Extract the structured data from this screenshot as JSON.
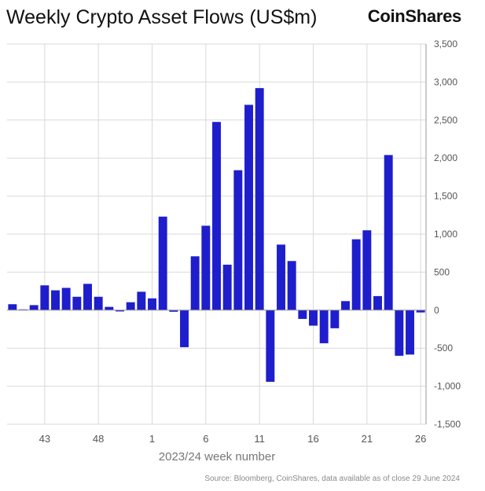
{
  "title": "Weekly Crypto Asset Flows (US$m)",
  "brand": "CoinShares",
  "source": "Source: Bloomberg, CoinShares, data available as of close 29 June 2024",
  "colors": {
    "bar": "#1e1ecc",
    "grid": "#d9d9d9",
    "axis": "#999999"
  },
  "chart_data": {
    "type": "bar",
    "xlabel": "2023/24 week number",
    "ylabel": "",
    "ylim": [
      -1500,
      3500
    ],
    "yticks": [
      -1500,
      -1000,
      -500,
      0,
      500,
      1000,
      1500,
      2000,
      2500,
      3000,
      3500
    ],
    "xtick_labels": [
      "43",
      "48",
      "1",
      "6",
      "11",
      "16",
      "21",
      "26"
    ],
    "grid": true,
    "categories": [
      "40",
      "41",
      "42",
      "43",
      "44",
      "45",
      "46",
      "47",
      "48",
      "49",
      "50",
      "51",
      "52",
      "1",
      "2",
      "3",
      "4",
      "5",
      "6",
      "7",
      "8",
      "9",
      "10",
      "11",
      "12",
      "13",
      "14",
      "15",
      "16",
      "17",
      "18",
      "19",
      "20",
      "21",
      "22",
      "23",
      "24",
      "25",
      "26"
    ],
    "values": [
      78,
      10,
      66,
      326,
      261,
      293,
      176,
      346,
      176,
      43,
      -17,
      104,
      242,
      155,
      1230,
      -21,
      -487,
      708,
      1110,
      2475,
      598,
      1840,
      2700,
      2920,
      -942,
      862,
      646,
      -115,
      -204,
      -435,
      -238,
      119,
      932,
      1050,
      185,
      2040,
      -600,
      -584,
      -30
    ]
  }
}
